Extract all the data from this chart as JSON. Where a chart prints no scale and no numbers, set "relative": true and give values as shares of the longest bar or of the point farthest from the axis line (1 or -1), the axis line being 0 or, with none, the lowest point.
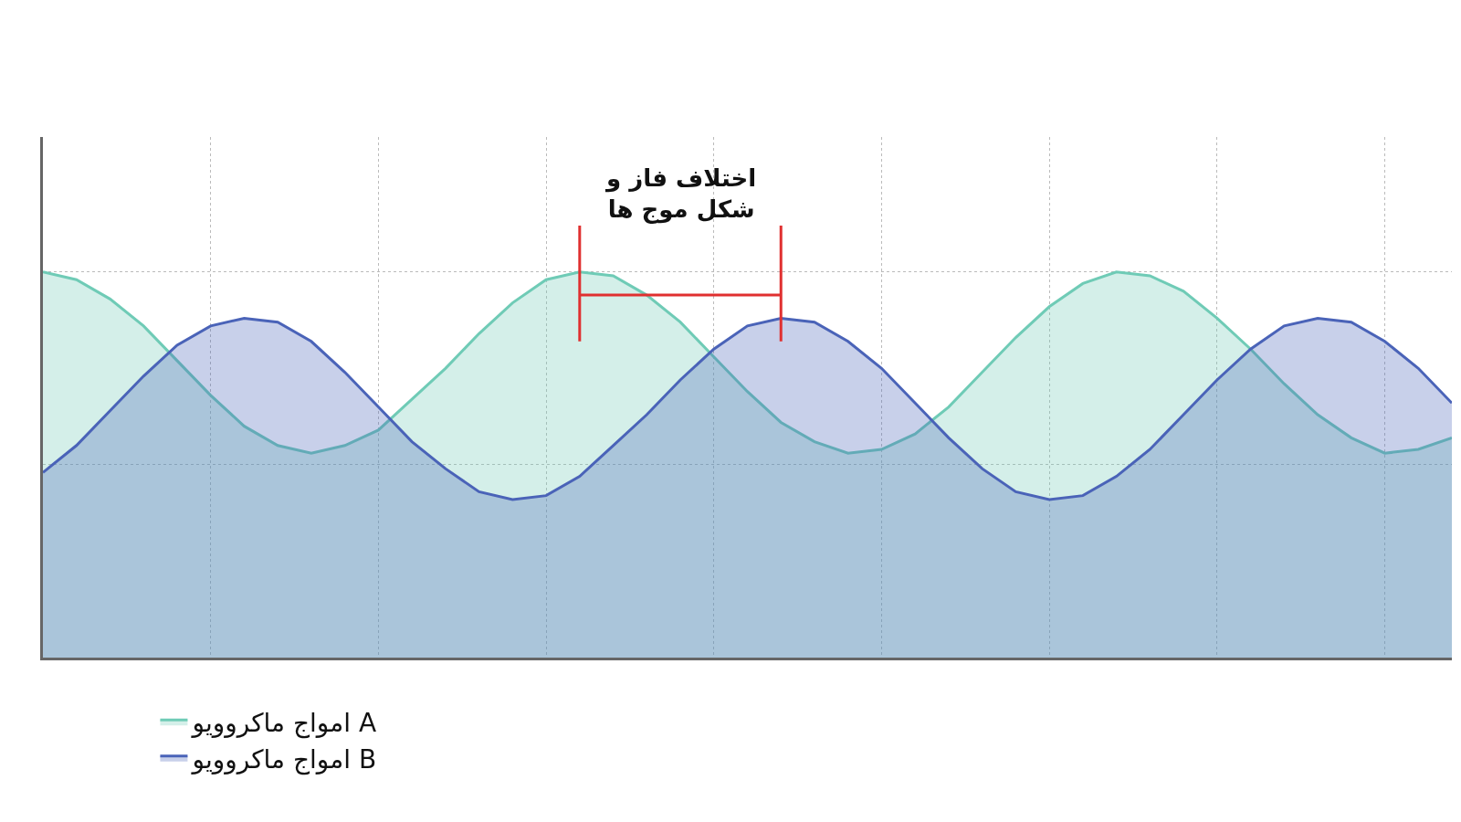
{
  "chart_data": {
    "type": "area",
    "relative": true,
    "grid": true,
    "legend": "bottom left",
    "marker": "none",
    "line_style": "solid",
    "categories": [
      null,
      null,
      null,
      null,
      null,
      null,
      null,
      null,
      null,
      null,
      null,
      null,
      null,
      null,
      null,
      null,
      null,
      null,
      null,
      null,
      null,
      null,
      null,
      null,
      null,
      null,
      null,
      null,
      null,
      null,
      null,
      null,
      null,
      null,
      null,
      null,
      null,
      null,
      null,
      null,
      null,
      null,
      null
    ],
    "series": [
      {
        "name": "امواج ماکروویو A",
        "color": "#6fcbb6",
        "values": [
          1.0,
          0.98,
          0.93,
          0.86,
          0.77,
          0.68,
          0.6,
          0.55,
          0.53,
          0.55,
          0.59,
          0.67,
          0.75,
          0.84,
          0.92,
          0.98,
          1.0,
          0.99,
          0.94,
          0.87,
          0.78,
          0.69,
          0.61,
          0.56,
          0.53,
          0.54,
          0.58,
          0.65,
          0.74,
          0.83,
          0.91,
          0.97,
          1.0,
          0.99,
          0.95,
          0.88,
          0.8,
          0.71,
          0.63,
          0.57,
          0.53,
          0.54,
          0.57
        ]
      },
      {
        "name": "امواج ماکروویو B",
        "color": "#4a63b8",
        "values": [
          0.48,
          0.55,
          0.64,
          0.73,
          0.81,
          0.86,
          0.88,
          0.87,
          0.82,
          0.74,
          0.65,
          0.56,
          0.49,
          0.43,
          0.41,
          0.42,
          0.47,
          0.55,
          0.63,
          0.72,
          0.8,
          0.86,
          0.88,
          0.87,
          0.82,
          0.75,
          0.66,
          0.57,
          0.49,
          0.43,
          0.41,
          0.42,
          0.47,
          0.54,
          0.63,
          0.72,
          0.8,
          0.86,
          0.88,
          0.87,
          0.82,
          0.75,
          0.66
        ]
      }
    ],
    "annotations": [
      "اختلاف فاز و\nشکل موج ها"
    ]
  }
}
